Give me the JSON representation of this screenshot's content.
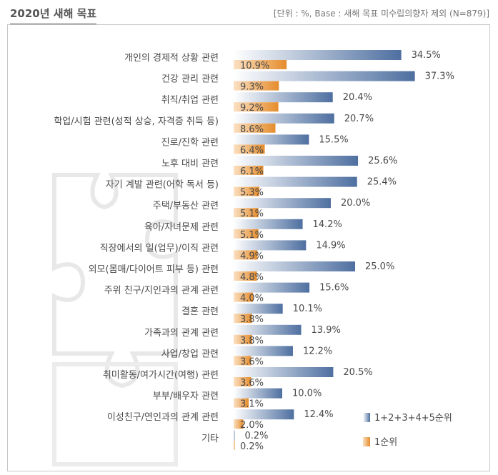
{
  "header": {
    "title": "2020년 새해 목표",
    "note": "[단위 : %, Base : 새해 목표 미수립의향자 제외 (N=879)]"
  },
  "colors": {
    "total": "#4e6fa0",
    "first": "#e58c2c"
  },
  "chart_data": {
    "type": "bar",
    "orientation": "horizontal",
    "title": "2020년 새해 목표",
    "categories": [
      "개인의 경제적 상황 관련",
      "건강 관리 관련",
      "취직/취업 관련",
      "학업/시험 관련(성적 상승, 자격증 취득 등)",
      "진로/진학 관련",
      "노후 대비 관련",
      "자기 계발 관련(어학 독서 등)",
      "주택/부동산 관련",
      "육아/자녀문제 관련",
      "직장에서의 일(업무)/이직 관련",
      "외모(몸매/다이어트 피부 등) 관련",
      "주위 친구/지인과의 관계 관련",
      "결혼 관련",
      "가족과의 관계 관련",
      "사업/창업 관련",
      "취미활동/여가시간(여행) 관련",
      "부부/배우자 관련",
      "이성친구/연인과의 관계 관련",
      "기타"
    ],
    "series": [
      {
        "name": "1+2+3+4+5순위",
        "values": [
          34.5,
          37.3,
          20.4,
          20.7,
          15.5,
          25.6,
          25.4,
          20.0,
          14.2,
          14.9,
          25.0,
          15.6,
          10.1,
          13.9,
          12.2,
          20.5,
          10.0,
          12.4,
          0.2
        ]
      },
      {
        "name": "1순위",
        "values": [
          10.9,
          9.3,
          9.2,
          8.6,
          6.4,
          6.1,
          5.3,
          5.1,
          5.1,
          4.9,
          4.8,
          4.0,
          3.8,
          3.8,
          3.6,
          3.6,
          3.1,
          2.0,
          0.2
        ]
      }
    ],
    "xlim": [
      0,
      40
    ],
    "grid": false,
    "legend_position": "bottom-right"
  }
}
